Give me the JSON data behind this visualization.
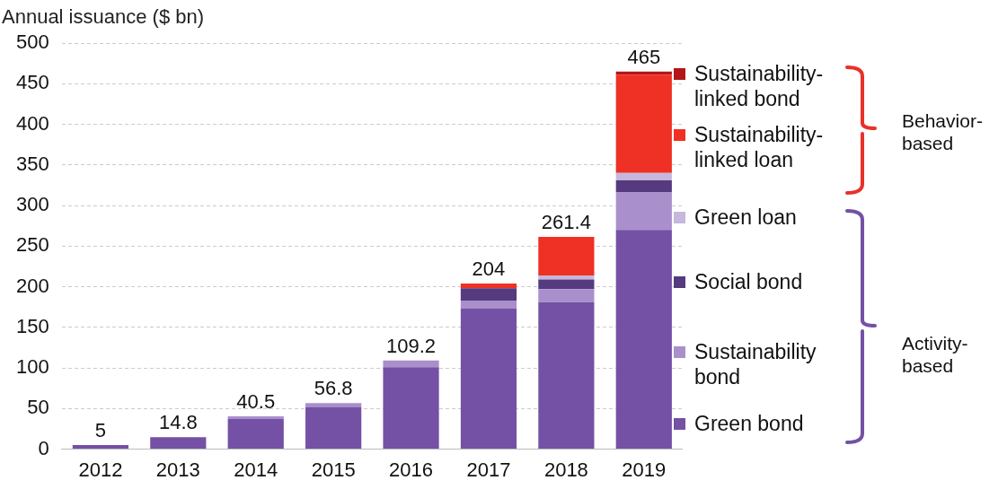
{
  "chart_data": {
    "type": "bar",
    "stacked": true,
    "ylabel": "Annual issuance ($ bn)",
    "categories": [
      "2012",
      "2013",
      "2014",
      "2015",
      "2016",
      "2017",
      "2018",
      "2019"
    ],
    "series": [
      {
        "name": "Green bond",
        "color": "#7451a5",
        "values": [
          5,
          14.8,
          37,
          52,
          101,
          173,
          181,
          270
        ]
      },
      {
        "name": "Sustainability bond",
        "color": "#a98fcb",
        "values": [
          0,
          0,
          3.5,
          4.8,
          8.2,
          10,
          16,
          46
        ]
      },
      {
        "name": "Social bond",
        "color": "#563a7f",
        "values": [
          0,
          0,
          0,
          0,
          0,
          15,
          12,
          15
        ]
      },
      {
        "name": "Green loan",
        "color": "#c5b8dc",
        "values": [
          0,
          0,
          0,
          0,
          0,
          null,
          5,
          9
        ]
      },
      {
        "name": "Sustainability-linked loan",
        "color": "#ee3124",
        "values": [
          0,
          0,
          0,
          0,
          0,
          6,
          47.4,
          121
        ]
      },
      {
        "name": "Sustainability-linked bond",
        "color": "#b3151a",
        "values": [
          0,
          0,
          0,
          0,
          0,
          0,
          0,
          4
        ]
      }
    ],
    "totals": [
      "5",
      "14.8",
      "40.5",
      "56.8",
      "109.2",
      "204",
      "261.4",
      "465"
    ],
    "ylim": [
      0,
      500
    ],
    "yticks": [
      0,
      50,
      100,
      150,
      200,
      250,
      300,
      350,
      400,
      450,
      500
    ],
    "grid": "y",
    "legend": "right",
    "annotations": [
      "Behavior-based",
      "Activity-based"
    ]
  }
}
